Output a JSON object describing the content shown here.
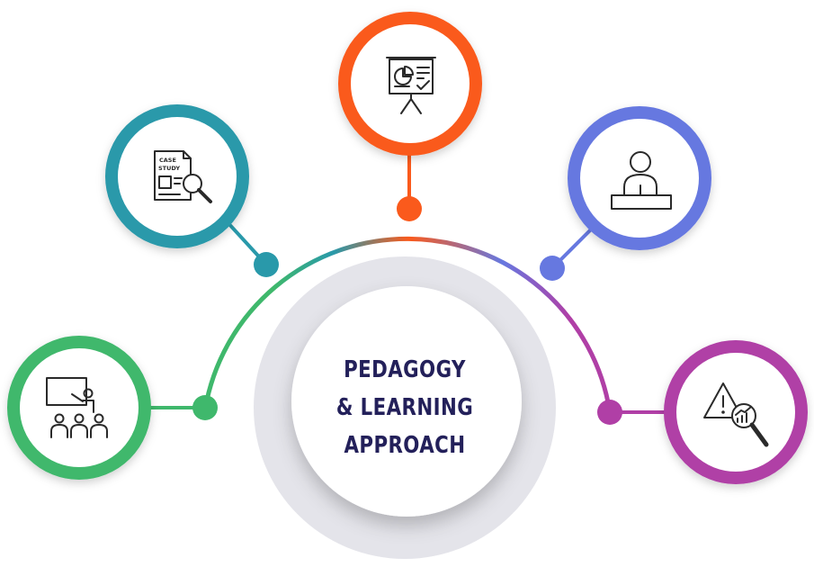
{
  "center": {
    "line1": "PEDAGOGY",
    "line2": "& LEARNING",
    "line3": "APPROACH"
  },
  "nodes": [
    {
      "id": "classroom-teaching",
      "icon": "teacher-classroom-icon",
      "color": "#3fb86c"
    },
    {
      "id": "case-study",
      "icon": "case-study-document-icon",
      "color": "#2999aa",
      "icon_text_1": "CASE",
      "icon_text_2": "STUDY"
    },
    {
      "id": "presentation",
      "icon": "presentation-board-icon",
      "color": "#fa5a1c"
    },
    {
      "id": "lecture",
      "icon": "speaker-podium-icon",
      "color": "#6678e0"
    },
    {
      "id": "risk-analysis",
      "icon": "warning-analysis-icon",
      "color": "#b03fa6"
    }
  ],
  "colors": {
    "hub_ring": "#e2e2e8",
    "title": "#23205a",
    "icon_stroke": "#2a2a2a"
  }
}
